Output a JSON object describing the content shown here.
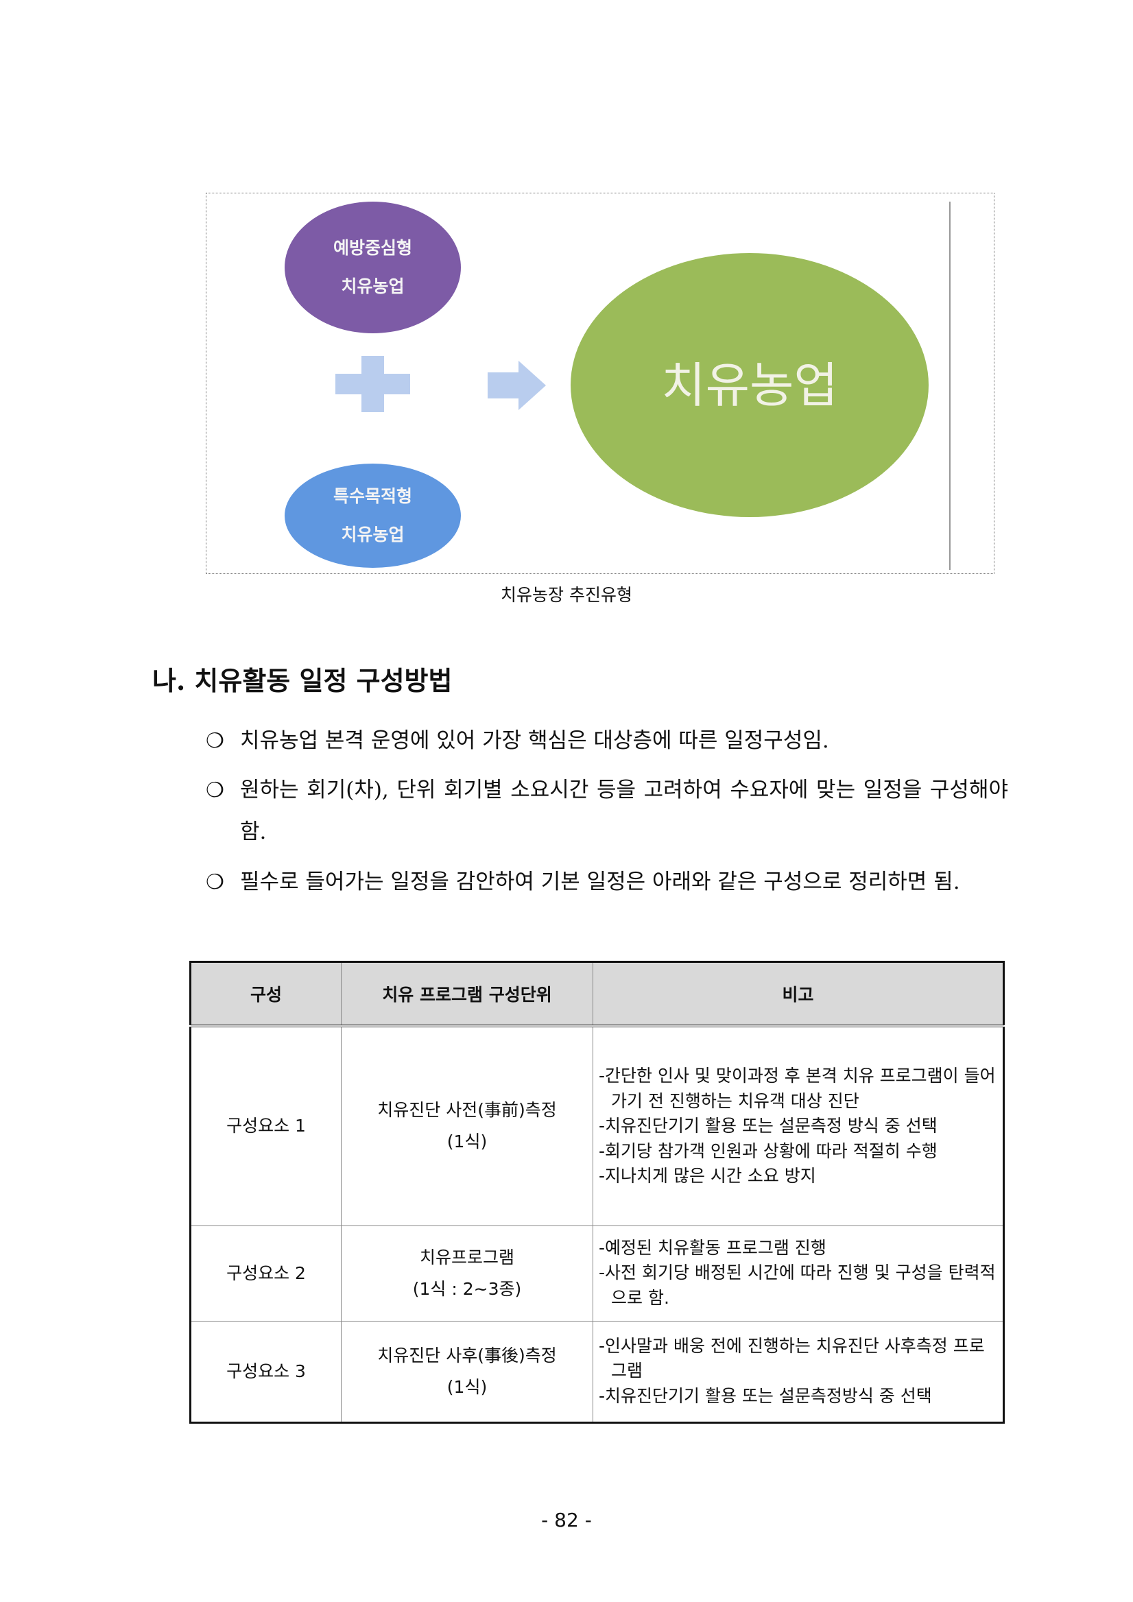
{
  "figure": {
    "left_top": [
      "예방중심형",
      "치유농업"
    ],
    "left_bottom": [
      "특수목적형",
      "치유농업"
    ],
    "result": "치유농업",
    "colors": {
      "purple": "#7d5ba6",
      "blue": "#5f97e0",
      "green": "#9bbb59",
      "connector": "#b9cdee"
    },
    "plus_icon": "plus-icon",
    "arrow_icon": "arrow-right-icon",
    "caption": "치유농장 추진유형"
  },
  "section": {
    "heading": "나. 치유활동 일정 구성방법",
    "bullet_mark": "❍",
    "bullets": [
      "치유농업 본격 운영에 있어 가장 핵심은 대상층에 따른 일정구성임.",
      "원하는 회기(차), 단위 회기별 소요시간 등을 고려하여 수요자에 맞는 일정을 구성해야 함.",
      "필수로 들어가는 일정을 감안하여 기본 일정은 아래와 같은 구성으로 정리하면 됨."
    ]
  },
  "table": {
    "headers": [
      "구성",
      "치유 프로그램 구성단위",
      "비고"
    ],
    "rows": [
      {
        "component": "구성요소 1",
        "unit": [
          "치유진단 사전(事前)측정",
          "(1식)"
        ],
        "notes": [
          "-간단한 인사 및 맞이과정 후 본격 치유 프로그램이 들어가기 전 진행하는 치유객 대상 진단",
          "-치유진단기기 활용 또는 설문측정 방식 중 선택",
          "-회기당 참가객 인원과 상황에 따라 적절히 수행",
          "-지나치게 많은 시간 소요 방지"
        ]
      },
      {
        "component": "구성요소 2",
        "unit": [
          "치유프로그램",
          "(1식 : 2~3종)"
        ],
        "notes": [
          "-예정된 치유활동 프로그램 진행",
          "-사전 회기당 배정된 시간에 따라 진행 및 구성을 탄력적으로 함."
        ]
      },
      {
        "component": "구성요소 3",
        "unit": [
          "치유진단 사후(事後)측정",
          "(1식)"
        ],
        "notes": [
          "-인사말과 배웅 전에 진행하는 치유진단 사후측정 프로그램",
          "-치유진단기기 활용 또는 설문측정방식 중 선택"
        ]
      }
    ]
  },
  "page_number": "- 82 -"
}
